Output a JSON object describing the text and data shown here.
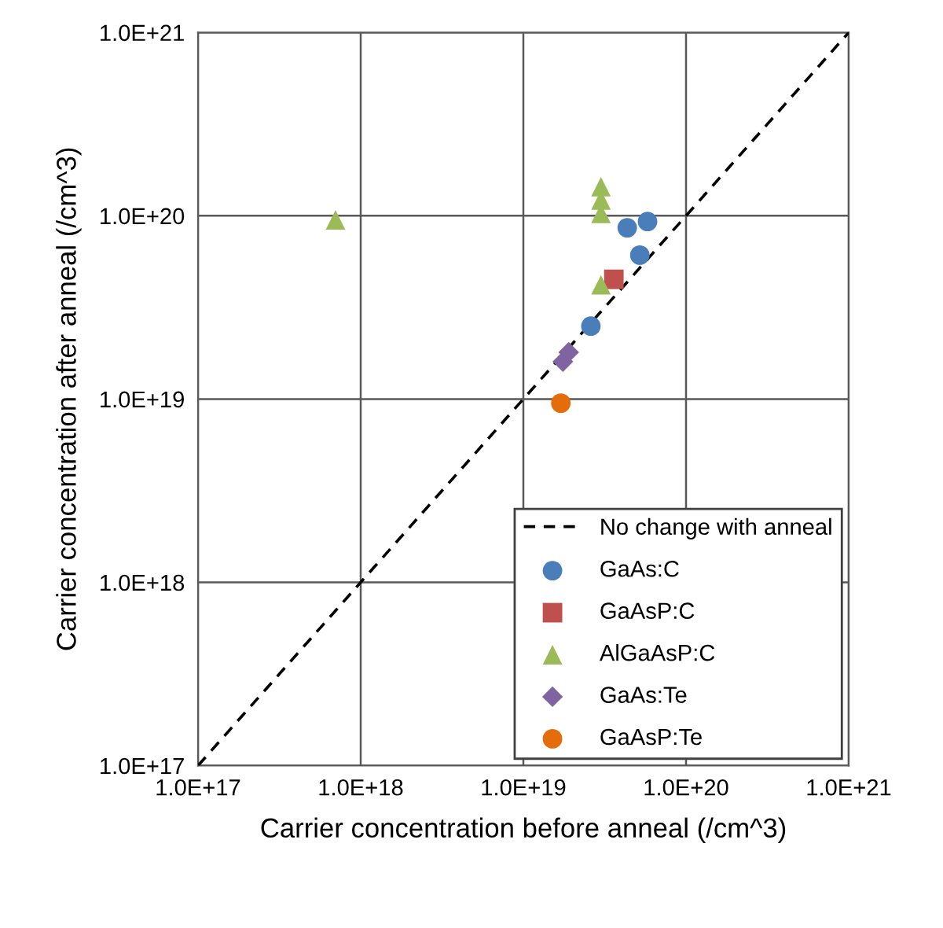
{
  "chart_data": {
    "type": "scatter",
    "xlabel": "Carrier concentration before anneal (/cm^3)",
    "ylabel": "Carrier concentration after anneal (/cm^3)",
    "log": "xy",
    "xlim": [
      1e+17,
      1e+21
    ],
    "ylim": [
      1e+17,
      1e+21
    ],
    "xticks": [
      {
        "value": 1e+17,
        "label": "1.0E+17"
      },
      {
        "value": 1e+18,
        "label": "1.0E+18"
      },
      {
        "value": 1e+19,
        "label": "1.0E+19"
      },
      {
        "value": 1e+20,
        "label": "1.0E+20"
      },
      {
        "value": 1e+21,
        "label": "1.0E+21"
      }
    ],
    "yticks": [
      {
        "value": 1e+17,
        "label": "1.0E+17"
      },
      {
        "value": 1e+18,
        "label": "1.0E+18"
      },
      {
        "value": 1e+19,
        "label": "1.0E+19"
      },
      {
        "value": 1e+20,
        "label": "1.0E+20"
      },
      {
        "value": 1e+21,
        "label": "1.0E+21"
      }
    ],
    "grid": true,
    "legend": "bottom right",
    "series": [
      {
        "name": "No change with anneal",
        "type": "line",
        "line_style": "dashed",
        "marker": "none",
        "color": "#000000",
        "x": [
          1e+17,
          1e+21
        ],
        "values": [
          1e+17,
          1e+21
        ]
      },
      {
        "name": "GaAs:C",
        "marker": "circle",
        "color": "#4a7ebb",
        "x": [
          4.35e+19,
          5.8e+19,
          5.2e+19,
          2.6e+19
        ],
        "values": [
          8.6e+19,
          9.3e+19,
          6.1e+19,
          2.5e+19
        ]
      },
      {
        "name": "GaAsP:C",
        "marker": "square",
        "color": "#c0504d",
        "x": [
          3.6e+19
        ],
        "values": [
          4.5e+19
        ]
      },
      {
        "name": "AlGaAsP:C",
        "marker": "triangle",
        "color": "#9bbb59",
        "x": [
          7e+17,
          3e+19,
          3e+19,
          3e+19,
          3e+19
        ],
        "values": [
          9.5e+19,
          1.44e+20,
          1.22e+20,
          1.03e+20,
          4.2e+19
        ]
      },
      {
        "name": "GaAs:Te",
        "marker": "diamond",
        "color": "#8064a2",
        "x": [
          1.75e+19,
          1.9e+19
        ],
        "values": [
          1.6e+19,
          1.8e+19
        ]
      },
      {
        "name": "GaAsP:Te",
        "marker": "circle",
        "color": "#e46c0a",
        "x": [
          1.7e+19
        ],
        "values": [
          9.5e+18
        ]
      }
    ]
  }
}
